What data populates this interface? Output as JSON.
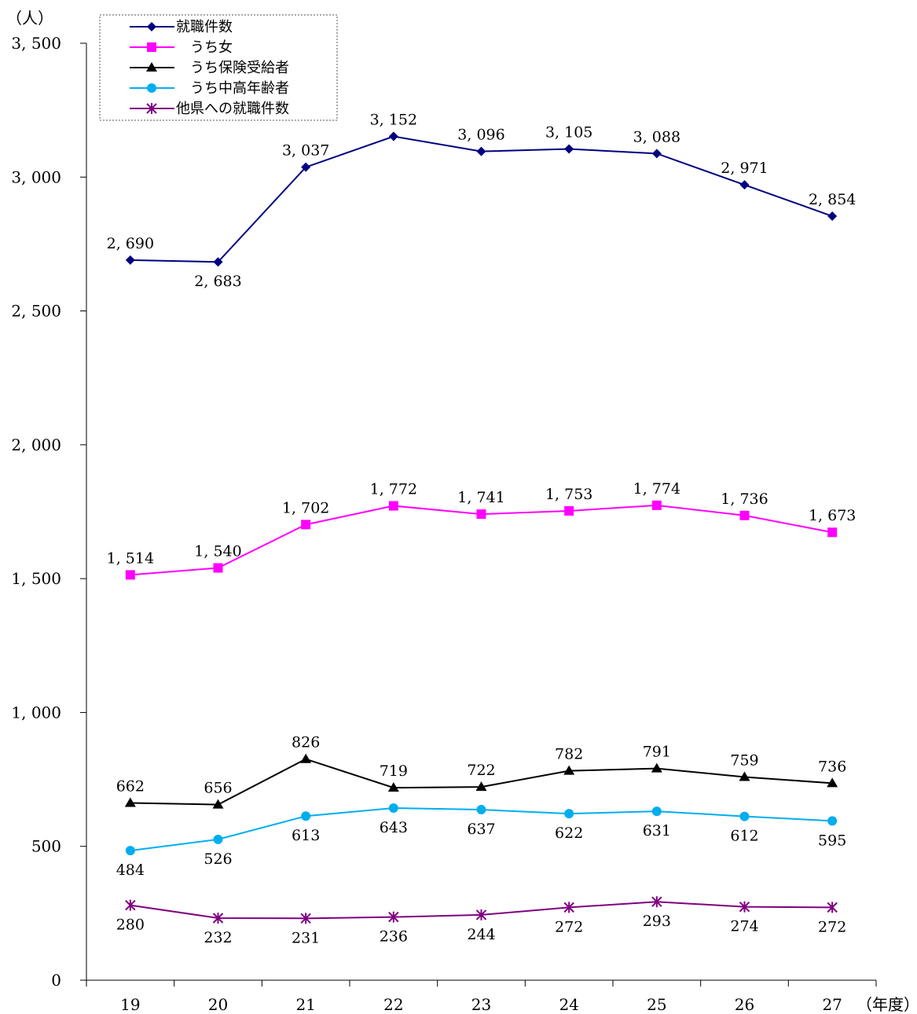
{
  "chart_data": {
    "type": "line",
    "title": "",
    "xlabel": "",
    "ylabel": "",
    "y_unit": "（人）",
    "x_unit": "（年度）",
    "categories": [
      "19",
      "20",
      "21",
      "22",
      "23",
      "24",
      "25",
      "26",
      "27"
    ],
    "ylim": [
      0,
      3500
    ],
    "yticks": [
      0,
      500,
      1000,
      1500,
      2000,
      2500,
      3000,
      3500
    ],
    "ytick_labels": [
      "0",
      "500",
      "1, 000",
      "1, 500",
      "2, 000",
      "2, 500",
      "3, 000",
      "3, 500"
    ],
    "grid": false,
    "legend_position": "top-left",
    "series": [
      {
        "name": "就職件数",
        "legend_label": "就職件数",
        "color": "#000080",
        "marker": "diamond",
        "values": [
          2690,
          2683,
          3037,
          3152,
          3096,
          3105,
          3088,
          2971,
          2854
        ],
        "labels": [
          "2, 690",
          "2, 683",
          "3, 037",
          "3, 152",
          "3, 096",
          "3, 105",
          "3, 088",
          "2, 971",
          "2, 854"
        ],
        "label_pos": [
          "above",
          "below",
          "above",
          "above",
          "above",
          "above",
          "above",
          "above",
          "above"
        ]
      },
      {
        "name": "うち女",
        "legend_label": "　うち女",
        "color": "#ff00ff",
        "marker": "square",
        "values": [
          1514,
          1540,
          1702,
          1772,
          1741,
          1753,
          1774,
          1736,
          1673
        ],
        "labels": [
          "1, 514",
          "1, 540",
          "1, 702",
          "1, 772",
          "1, 741",
          "1, 753",
          "1, 774",
          "1, 736",
          "1, 673"
        ],
        "label_pos": [
          "above",
          "above",
          "above",
          "above",
          "above",
          "above",
          "above",
          "above",
          "above"
        ]
      },
      {
        "name": "うち保険受給者",
        "legend_label": "　うち保険受給者",
        "color": "#000000",
        "marker": "triangle",
        "values": [
          662,
          656,
          826,
          719,
          722,
          782,
          791,
          759,
          736
        ],
        "labels": [
          "662",
          "656",
          "826",
          "719",
          "722",
          "782",
          "791",
          "759",
          "736"
        ],
        "label_pos": [
          "above",
          "above",
          "above",
          "above",
          "above",
          "above",
          "above",
          "above",
          "above"
        ]
      },
      {
        "name": "うち中高年齢者",
        "legend_label": "　うち中高年齢者",
        "color": "#00aeef",
        "marker": "circle",
        "values": [
          484,
          526,
          613,
          643,
          637,
          622,
          631,
          612,
          595
        ],
        "labels": [
          "484",
          "526",
          "613",
          "643",
          "637",
          "622",
          "631",
          "612",
          "595"
        ],
        "label_pos": [
          "below",
          "below",
          "below",
          "below",
          "below",
          "below",
          "below",
          "below",
          "below"
        ]
      },
      {
        "name": "他県への就職件数",
        "legend_label": "他県への就職件数",
        "color": "#800080",
        "marker": "asterisk",
        "values": [
          280,
          232,
          231,
          236,
          244,
          272,
          293,
          274,
          272
        ],
        "labels": [
          "280",
          "232",
          "231",
          "236",
          "244",
          "272",
          "293",
          "274",
          "272"
        ],
        "label_pos": [
          "below",
          "below",
          "below",
          "below",
          "below",
          "below",
          "below",
          "below",
          "below"
        ]
      }
    ]
  }
}
